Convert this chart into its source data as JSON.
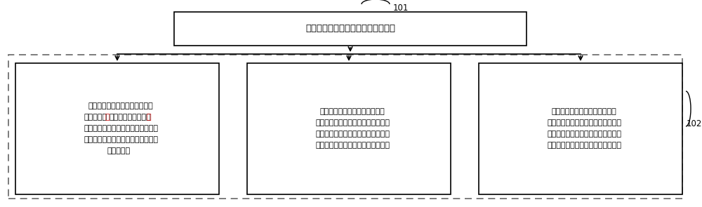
{
  "title_box_text": "确定供热机组的供电煤耗和供热煤耗",
  "label_101": "101",
  "label_102": "102",
  "box1_line1": "在供热机组的供电煤耗和供热煤",
  "box1_line2": "耗同时满足",
  "box1_line2_red": "三",
  "box1_line2_rest": "级能耗等级时，根据",
  "box1_line2_red2": "三",
  "box1_line3": "级能耗等级参数，对供电煤耗进行计",
  "box1_line4": "算，获得在供热工况下的三级供电煤",
  "box1_line5": "耗的限额值",
  "box2_line1": "在供电煤耗和供热煤耗同时满足",
  "box2_line2": "二级能耗等级时，根据二级能耗等级",
  "box2_line3": "参数，对供电煤耗进行计算，获得在",
  "box2_line4": "供热工况下的二级供电煤耗的限额值",
  "box3_line1": "在供电煤耗和供热煤耗同时满足",
  "box3_line2": "一级能耗等级时，根据一级能耗等级",
  "box3_line3": "参数，对供电煤耗进行计算，获得在",
  "box3_line4": "供热工况下的一级供电煤耗的限额值",
  "highlight_color": "#cc0000",
  "box_color": "#000000",
  "bg_color": "#ffffff",
  "dashed_border_color": "#666666",
  "arrow_color": "#000000",
  "text_color": "#000000",
  "font_size_main": 9.5,
  "font_size_sub": 8.0,
  "font_size_label": 8.5
}
